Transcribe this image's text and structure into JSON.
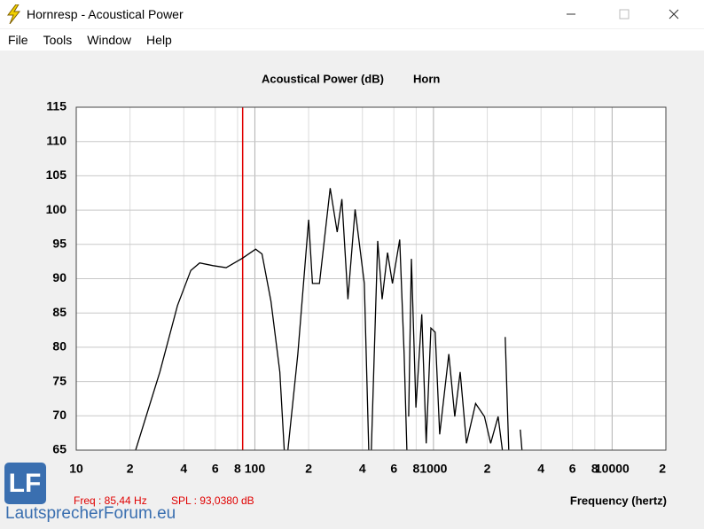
{
  "window_title": "Hornresp - Acoustical Power",
  "menu": [
    "File",
    "Tools",
    "Window",
    "Help"
  ],
  "chart_data": {
    "type": "line",
    "title": "Acoustical Power (dB)",
    "subtitle": "Horn",
    "x_label": "Frequency (hertz)",
    "x_scale": "log",
    "xlim": [
      10,
      20000
    ],
    "ylim": [
      65,
      115
    ],
    "xticks": [
      10,
      {
        "value": 20,
        "label": "2"
      },
      {
        "value": 40,
        "label": "4"
      },
      {
        "value": 60,
        "label": "6"
      },
      {
        "value": 80,
        "label": "8"
      },
      100,
      {
        "value": 200,
        "label": "2"
      },
      {
        "value": 400,
        "label": "4"
      },
      {
        "value": 600,
        "label": "6"
      },
      {
        "value": 800,
        "label": "8"
      },
      1000,
      {
        "value": 2000,
        "label": "2"
      },
      {
        "value": 4000,
        "label": "4"
      },
      {
        "value": 6000,
        "label": "6"
      },
      {
        "value": 8000,
        "label": "8"
      },
      10000,
      {
        "value": 20000,
        "label": "2"
      }
    ],
    "yticks": [
      65,
      70,
      75,
      80,
      85,
      90,
      95,
      100,
      105,
      110,
      115
    ],
    "grid": true,
    "series": [
      {
        "color": "#000000",
        "x": [
          21.5,
          29.4,
          36.9,
          43.8,
          49.1,
          58.4,
          69.1,
          85.4,
          101,
          109.6,
          123,
          138,
          146,
          null,
          153,
          174,
          200,
          210,
          230,
          264,
          289,
          307,
          332,
          364,
          410,
          434,
          null,
          449,
          487,
          516,
          553,
          589,
          647,
          685,
          710,
          null,
          726,
          752,
          797,
          860,
          910,
          967,
          1022,
          1083,
          1218,
          1315,
          1410,
          1530,
          1720,
          1930,
          2090,
          2300,
          2430,
          null,
          2520,
          2640,
          null,
          3060,
          3130
        ],
        "values": [
          65,
          76.4,
          86.1,
          91.2,
          92.3,
          91.9,
          91.6,
          93.0,
          94.3,
          93.6,
          86.7,
          76.4,
          65,
          null,
          65,
          79,
          98.6,
          89.3,
          89.3,
          103.2,
          96.8,
          101.6,
          87,
          100.1,
          89.3,
          65,
          null,
          65,
          95.5,
          87,
          93.8,
          89.3,
          95.7,
          79,
          65,
          null,
          69.9,
          92.9,
          71.2,
          84.8,
          66,
          82.8,
          82.2,
          67.3,
          79,
          69.9,
          76.4,
          66,
          71.8,
          69.9,
          66,
          69.9,
          65,
          null,
          81.5,
          65,
          null,
          68,
          65
        ]
      }
    ],
    "cursor": {
      "value": 85.44,
      "label": "Freq : 85,44 Hz"
    },
    "cursor_spl": "SPL : 93,0380 dB"
  },
  "logo": {
    "mark": "LF",
    "text": "LautsprecherForum.eu"
  }
}
